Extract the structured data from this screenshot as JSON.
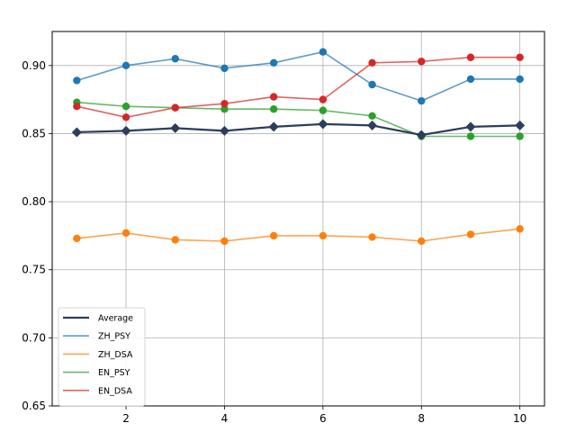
{
  "chart_data": {
    "type": "line",
    "title": "",
    "xlabel": "",
    "ylabel": "",
    "x": [
      1,
      2,
      3,
      4,
      5,
      6,
      7,
      8,
      9,
      10
    ],
    "xlim": [
      0.5,
      10.5
    ],
    "ylim": [
      0.65,
      0.925
    ],
    "xticks": [
      2,
      4,
      6,
      8,
      10
    ],
    "yticks": [
      0.65,
      0.7,
      0.75,
      0.8,
      0.85,
      0.9
    ],
    "ytick_labels": [
      "0.65",
      "0.70",
      "0.75",
      "0.80",
      "0.85",
      "0.90"
    ],
    "grid": true,
    "legend_position": "lower-left",
    "series": [
      {
        "name": "Average",
        "color": "#2c3e5c",
        "marker": "diamond",
        "line_width": "bold",
        "values": [
          0.851,
          0.852,
          0.854,
          0.852,
          0.855,
          0.857,
          0.856,
          0.849,
          0.855,
          0.856
        ]
      },
      {
        "name": "ZH_PSY",
        "color": "#1f77b4",
        "marker": "circle",
        "values": [
          0.889,
          0.9,
          0.905,
          0.898,
          0.902,
          0.91,
          0.886,
          0.874,
          0.89,
          0.89
        ]
      },
      {
        "name": "ZH_DSA",
        "color": "#ff7f0e",
        "marker": "circle",
        "values": [
          0.773,
          0.777,
          0.772,
          0.771,
          0.775,
          0.775,
          0.774,
          0.771,
          0.776,
          0.78
        ]
      },
      {
        "name": "EN_PSY",
        "color": "#2ca02c",
        "marker": "circle",
        "values": [
          0.873,
          0.87,
          0.869,
          0.868,
          0.868,
          0.867,
          0.863,
          0.848,
          0.848,
          0.848
        ]
      },
      {
        "name": "EN_DSA",
        "color": "#d62728",
        "marker": "circle",
        "values": [
          0.87,
          0.862,
          0.869,
          0.872,
          0.877,
          0.875,
          0.902,
          0.903,
          0.906,
          0.906
        ]
      }
    ]
  }
}
